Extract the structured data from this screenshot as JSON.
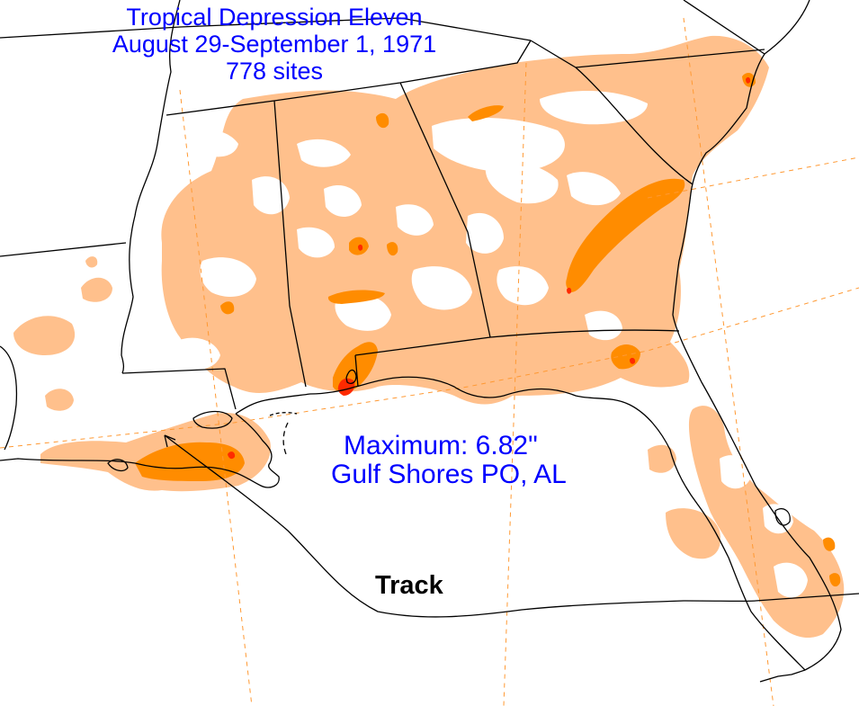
{
  "title": {
    "line1": "Tropical Depression Eleven",
    "line2": "August 29-September 1, 1971",
    "line3": "778 sites"
  },
  "annotation": {
    "maximum": "Maximum:  6.82\"",
    "location": "Gulf Shores PO, AL"
  },
  "track_label": "Track",
  "colors": {
    "light_rain": "#ffc08c",
    "moderate_rain": "#ff8c00",
    "heavy_rain": "#ff2a00",
    "border": "#000000",
    "graticule": "#ff9933",
    "text": "#0000ff"
  }
}
